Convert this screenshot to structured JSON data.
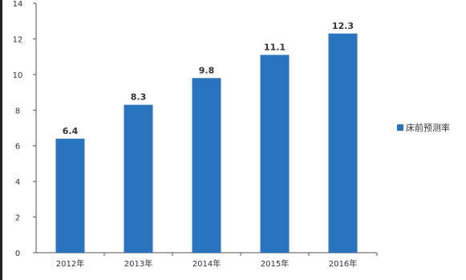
{
  "chart_data": {
    "type": "bar",
    "categories": [
      "2012年",
      "2013年",
      "2014年",
      "2015年",
      "2016年"
    ],
    "series": [
      {
        "name": "床前预测率",
        "values": [
          6.4,
          8.3,
          9.8,
          11.1,
          12.3
        ],
        "color": "#2a74bf"
      }
    ],
    "data_labels": [
      "6.4",
      "8.3",
      "9.8",
      "11.1",
      "12.3"
    ],
    "y_ticks": [
      0,
      2,
      4,
      6,
      8,
      10,
      12,
      14
    ],
    "y_tick_labels": [
      "0",
      "2",
      "4",
      "6",
      "8",
      "10",
      "12",
      "14"
    ],
    "ylim": [
      0,
      14
    ],
    "title": "",
    "xlabel": "",
    "ylabel": "",
    "legend_position": "right",
    "grid": false,
    "axis_color": "#555555"
  }
}
